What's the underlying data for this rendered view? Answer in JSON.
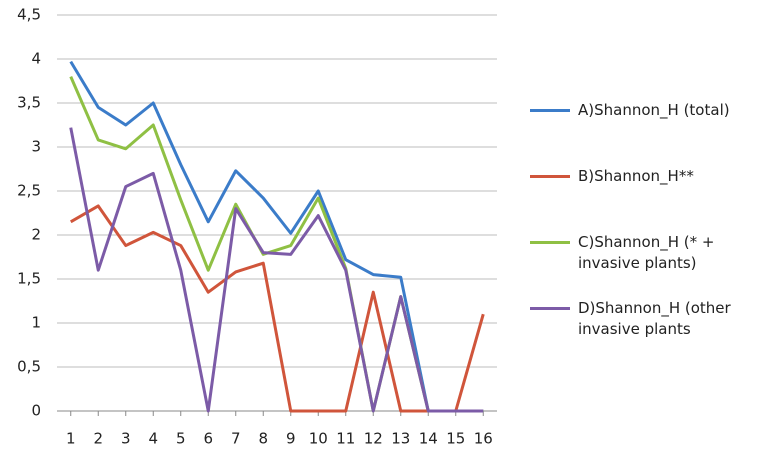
{
  "chart_data": {
    "type": "line",
    "categories": [
      "1",
      "2",
      "3",
      "4",
      "5",
      "6",
      "7",
      "8",
      "9",
      "10",
      "11",
      "12",
      "13",
      "14",
      "15",
      "16"
    ],
    "series": [
      {
        "name": "A)Shannon_H (total)",
        "color": "#3b7cc9",
        "values": [
          3.97,
          3.45,
          3.25,
          3.5,
          2.8,
          2.15,
          2.73,
          2.42,
          2.02,
          2.5,
          1.72,
          1.55,
          1.52,
          0,
          0,
          0
        ]
      },
      {
        "name": "B)Shannon_H**",
        "color": "#d0553b",
        "values": [
          2.15,
          2.33,
          1.88,
          2.03,
          1.88,
          1.35,
          1.58,
          1.68,
          0,
          0,
          0,
          1.35,
          0,
          0,
          0,
          1.1
        ]
      },
      {
        "name": "C)Shannon_H (* + invasive plants)",
        "color": "#8fc044",
        "values": [
          3.8,
          3.08,
          2.98,
          3.25,
          2.4,
          1.6,
          2.35,
          1.78,
          1.88,
          2.42,
          1.62,
          0,
          1.3,
          0,
          0,
          0
        ]
      },
      {
        "name": "D)Shannon_H (other invasive plants",
        "color": "#7c5ba7",
        "values": [
          3.22,
          1.6,
          2.55,
          2.7,
          1.6,
          0,
          2.3,
          1.8,
          1.78,
          2.22,
          1.6,
          0,
          1.3,
          0,
          0,
          0
        ]
      }
    ],
    "ylim": [
      0,
      4.5
    ],
    "yticks": [
      0,
      {
        "value": 0.5,
        "label": "0,5"
      },
      1,
      {
        "value": 1.5,
        "label": "1,5"
      },
      2,
      {
        "value": 2.5,
        "label": "2,5"
      },
      3,
      {
        "value": 3.5,
        "label": "3,5"
      },
      4,
      {
        "value": 4.5,
        "label": "4,5"
      }
    ],
    "grid": true,
    "legend": "right"
  }
}
